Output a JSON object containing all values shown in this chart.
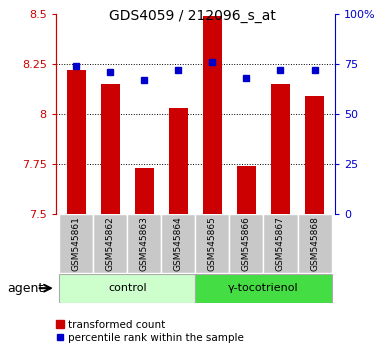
{
  "title": "GDS4059 / 212096_s_at",
  "samples": [
    "GSM545861",
    "GSM545862",
    "GSM545863",
    "GSM545864",
    "GSM545865",
    "GSM545866",
    "GSM545867",
    "GSM545868"
  ],
  "red_values": [
    8.22,
    8.15,
    7.73,
    8.03,
    8.49,
    7.74,
    8.15,
    8.09
  ],
  "blue_values": [
    74,
    71,
    67,
    72,
    76,
    68,
    72,
    72
  ],
  "ylim_left": [
    7.5,
    8.5
  ],
  "ylim_right": [
    0,
    100
  ],
  "yticks_left": [
    7.5,
    7.75,
    8.0,
    8.25,
    8.5
  ],
  "yticks_right": [
    0,
    25,
    50,
    75,
    100
  ],
  "ytick_labels_left": [
    "7.5",
    "7.75",
    "8",
    "8.25",
    "8.5"
  ],
  "ytick_labels_right": [
    "0",
    "25",
    "50",
    "75",
    "100%"
  ],
  "grid_values": [
    7.75,
    8.0,
    8.25
  ],
  "control_label": "control",
  "treatment_label": "γ-tocotrienol",
  "agent_label": "agent",
  "legend_red": "transformed count",
  "legend_blue": "percentile rank within the sample",
  "bar_color": "#cc0000",
  "dot_color": "#0000cc",
  "bar_width": 0.55,
  "bar_bottom": 7.5,
  "control_bg": "#ccffcc",
  "treatment_bg": "#44dd44",
  "sample_bg": "#c8c8c8",
  "left_axis_color": "#cc0000",
  "right_axis_color": "#0000cc"
}
